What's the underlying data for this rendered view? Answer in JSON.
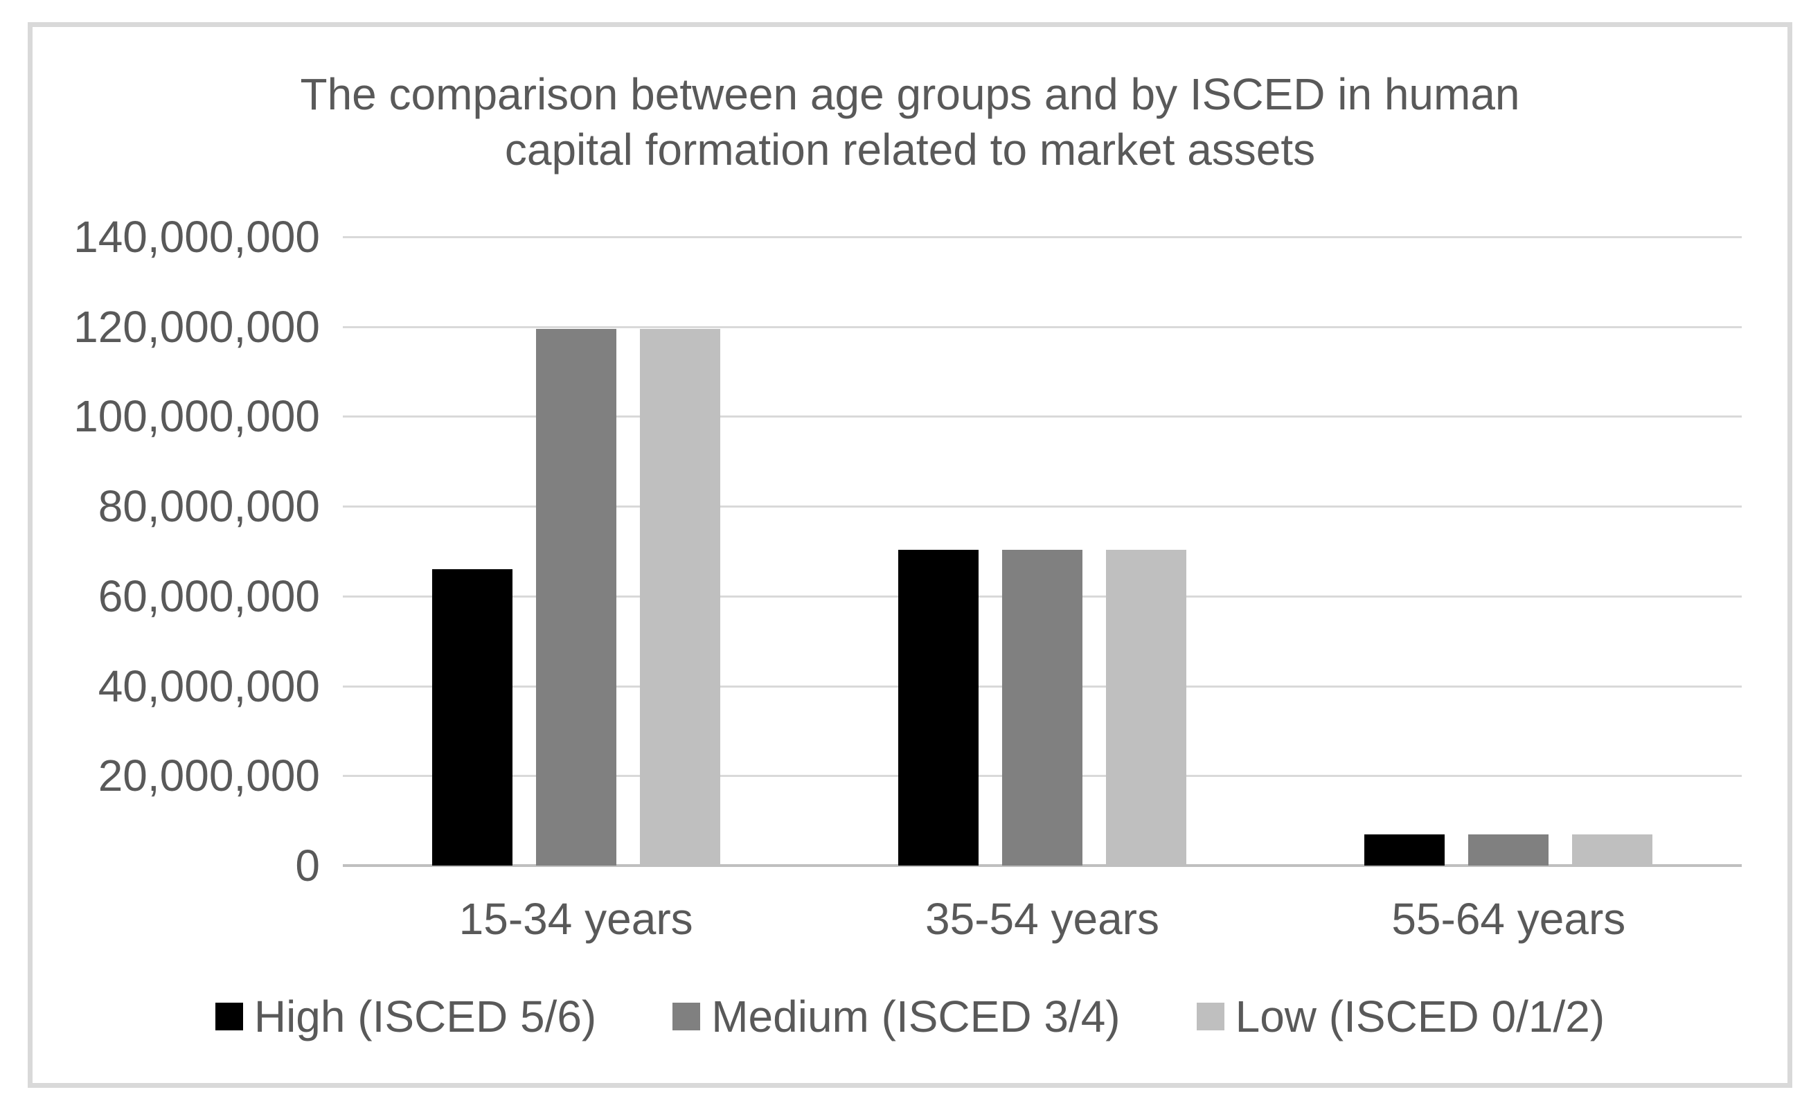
{
  "chart_data": {
    "type": "bar",
    "title": "The comparison between age groups and by ISCED in human capital formation related to market assets",
    "categories": [
      "15-34 years",
      "35-54 years",
      "55-64 years"
    ],
    "series": [
      {
        "name": "High (ISCED 5/6)",
        "color": "#000000",
        "values": [
          66000000,
          70300000,
          7000000
        ]
      },
      {
        "name": "Medium (ISCED 3/4)",
        "color": "#808080",
        "values": [
          119500000,
          70300000,
          7000000
        ]
      },
      {
        "name": "Low (ISCED 0/1/2)",
        "color": "#bfbfbf",
        "values": [
          119500000,
          70300000,
          7000000
        ]
      }
    ],
    "y_axis": {
      "min": 0,
      "max": 140000000,
      "step": 20000000,
      "tick_labels": [
        "140,000,000",
        "120,000,000",
        "100,000,000",
        "80,000,000",
        "60,000,000",
        "40,000,000",
        "20,000,000",
        "0"
      ]
    },
    "grid": true,
    "legend_position": "bottom",
    "colors": {
      "gridline": "#d9d9d9",
      "axis_line": "#bfbfbf",
      "text": "#595959",
      "frame_border": "#d9d9d9",
      "background": "#ffffff"
    }
  }
}
